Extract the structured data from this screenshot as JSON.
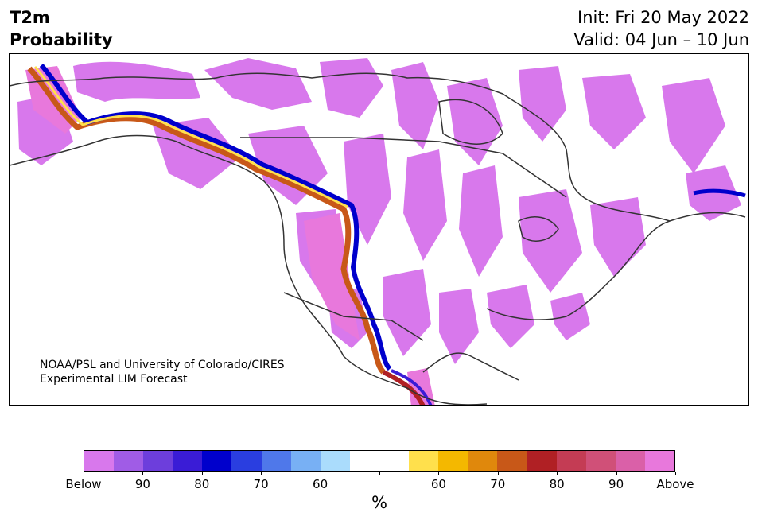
{
  "header": {
    "variable": "T2m",
    "product": "Probability",
    "init": "Init: Fri 20 May 2022",
    "valid": "Valid: 04 Jun – 10 Jun"
  },
  "credit": {
    "line1": "NOAA/PSL and University of Colorado/CIRES",
    "line2": "Experimental LIM Forecast"
  },
  "colorbar": {
    "colors": [
      "#d878ec",
      "#a05ce6",
      "#6d3edc",
      "#3a1cd6",
      "#0000cc",
      "#2a3ee0",
      "#4f78ea",
      "#78b0f4",
      "#aadcfc",
      "#ffffff",
      "#ffffff",
      "#ffe04c",
      "#f4b800",
      "#e0880c",
      "#c85818",
      "#b02024",
      "#c43c54",
      "#d05078",
      "#da60a8",
      "#e878dc"
    ],
    "tick_labels": [
      "Below",
      "90",
      "80",
      "70",
      "60",
      "",
      "60",
      "70",
      "80",
      "90",
      "Above"
    ],
    "unit": "%"
  },
  "legend_colors": {
    "below": "#d878ec",
    "above": "#e878dc",
    "coast": "#333333"
  }
}
